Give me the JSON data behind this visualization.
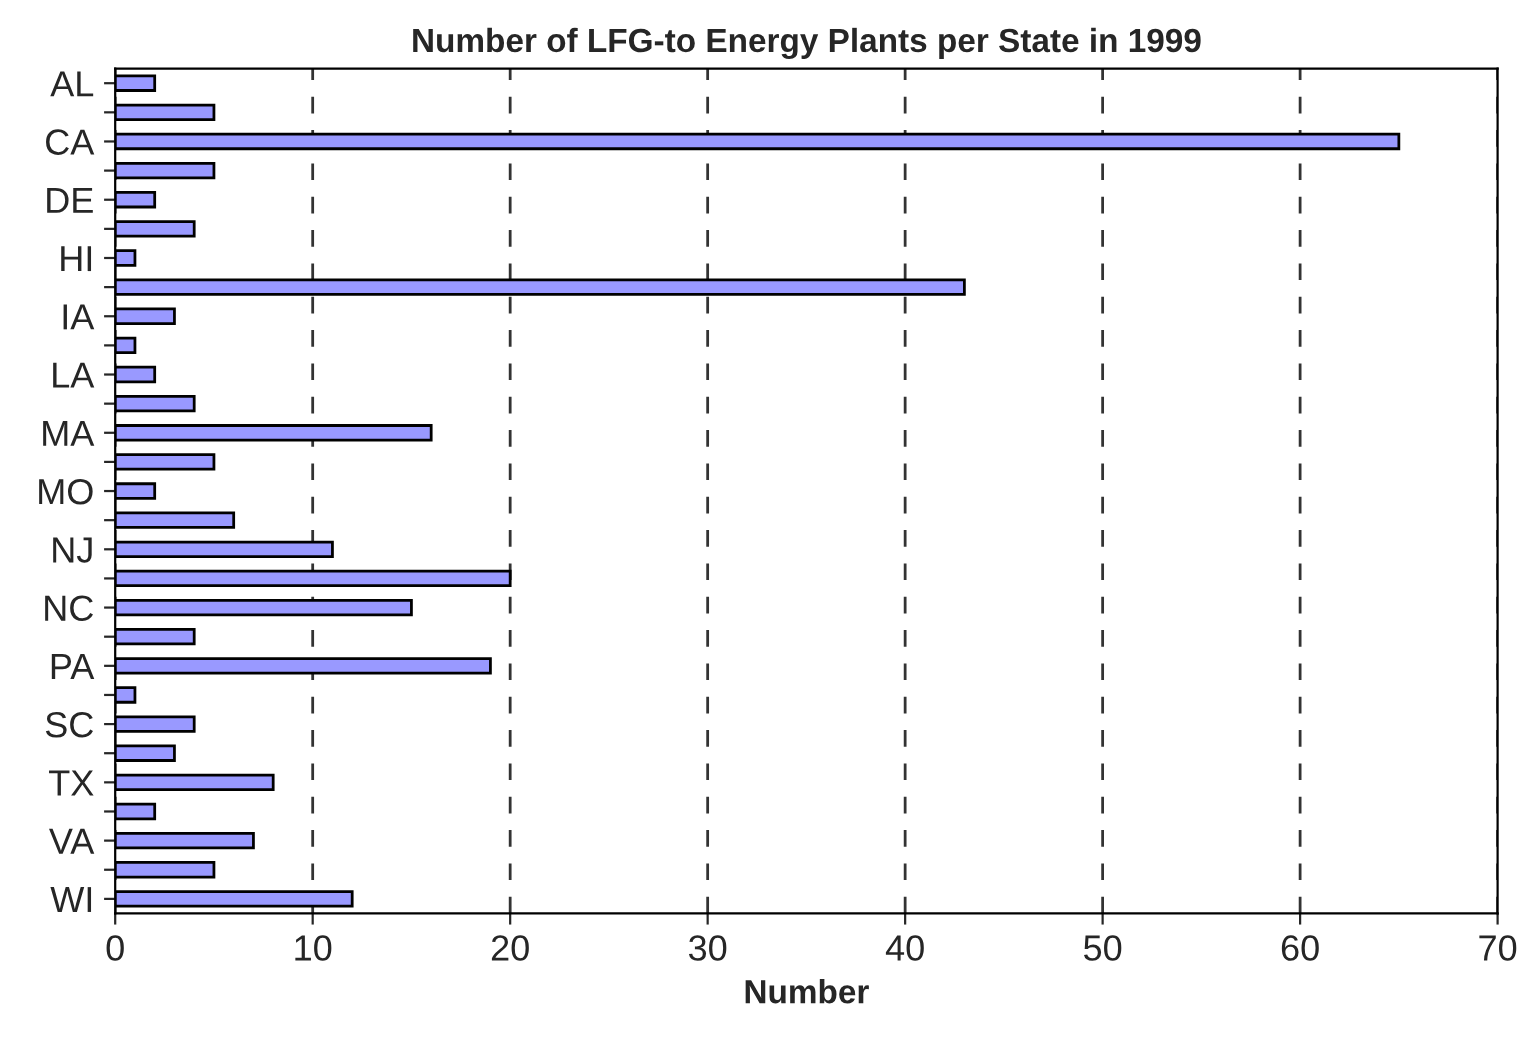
{
  "chart_data": {
    "type": "bar",
    "orientation": "horizontal",
    "title": "Number of LFG-to Energy Plants per State in 1999",
    "xlabel": "Number",
    "categories": [
      "AL",
      null,
      "CA",
      null,
      "DE",
      null,
      "HI",
      null,
      "IA",
      null,
      "LA",
      null,
      "MA",
      null,
      "MO",
      null,
      "NJ",
      null,
      "NC",
      null,
      "PA",
      null,
      "SC",
      null,
      "TX",
      null,
      "VA",
      null,
      "WI"
    ],
    "values": [
      2,
      5,
      65,
      5,
      2,
      4,
      1,
      43,
      3,
      1,
      2,
      4,
      16,
      5,
      2,
      6,
      11,
      20,
      15,
      4,
      19,
      1,
      4,
      3,
      8,
      2,
      7,
      5,
      12
    ],
    "color": "#9999ff",
    "xlim": [
      0,
      70
    ],
    "xticks": [
      0,
      10,
      20,
      30,
      40,
      50,
      60,
      70
    ],
    "grid": "x",
    "line_style": "dashed"
  }
}
